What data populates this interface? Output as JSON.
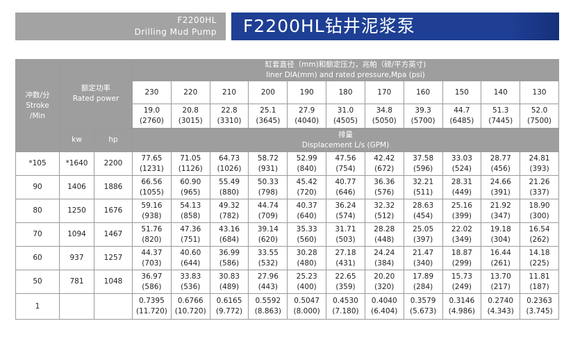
{
  "header": {
    "model": "F2200HL",
    "subtitle": "Drilling Mud Pump",
    "title": "F2200HL钻井泥浆泵"
  },
  "table": {
    "stroke_header": [
      "冲数/分",
      "Stroke",
      "/Min"
    ],
    "power_header": [
      "额定功率",
      "Rated power"
    ],
    "liner_header": [
      "缸套直径（mm)和额定压力，兆帕（磅/平方英寸)",
      "liner DIA(mm) and rated pressure,Mpa (psi)"
    ],
    "diameters": [
      "230",
      "220",
      "210",
      "200",
      "190",
      "180",
      "170",
      "160",
      "150",
      "140",
      "130"
    ],
    "pressures": [
      [
        "19.0",
        "(2760)"
      ],
      [
        "20.8",
        "(3015)"
      ],
      [
        "22.8",
        "(3310)"
      ],
      [
        "25.1",
        "(3645)"
      ],
      [
        "27.9",
        "(4040)"
      ],
      [
        "31.0",
        "(4505)"
      ],
      [
        "34.8",
        "(5050)"
      ],
      [
        "39.3",
        "(5700)"
      ],
      [
        "44.7",
        "(6485)"
      ],
      [
        "51.3",
        "(7445)"
      ],
      [
        "52.0",
        "(7500)"
      ]
    ],
    "kw_header": "kw",
    "hp_header": "hp",
    "displacement_header": [
      "排量",
      "Displacement L/s (GPM)"
    ],
    "rows": [
      {
        "stroke": "*105",
        "kw": "*1640",
        "hp": "2200",
        "flow": [
          [
            "77.65",
            "(1231)"
          ],
          [
            "71.05",
            "(1126)"
          ],
          [
            "64.73",
            "(1026)"
          ],
          [
            "58.72",
            "(931)"
          ],
          [
            "52.99",
            "(840)"
          ],
          [
            "47.56",
            "(754)"
          ],
          [
            "42.42",
            "(672)"
          ],
          [
            "37.58",
            "(596)"
          ],
          [
            "33.03",
            "(524)"
          ],
          [
            "28.77",
            "(456)"
          ],
          [
            "24.81",
            "(393)"
          ]
        ]
      },
      {
        "stroke": "90",
        "kw": "1406",
        "hp": "1886",
        "flow": [
          [
            "66.56",
            "(1055)"
          ],
          [
            "60.90",
            "(965)"
          ],
          [
            "55.49",
            "(880)"
          ],
          [
            "50.33",
            "(798)"
          ],
          [
            "45.42",
            "(720)"
          ],
          [
            "40.77",
            "(646)"
          ],
          [
            "36.36",
            "(576)"
          ],
          [
            "32.21",
            "(511)"
          ],
          [
            "28.31",
            "(449)"
          ],
          [
            "24.66",
            "(391)"
          ],
          [
            "21.26",
            "(337)"
          ]
        ]
      },
      {
        "stroke": "80",
        "kw": "1250",
        "hp": "1676",
        "flow": [
          [
            "59.16",
            "(938)"
          ],
          [
            "54.13",
            "(858)"
          ],
          [
            "49.32",
            "(782)"
          ],
          [
            "44.74",
            "(709)"
          ],
          [
            "40.37",
            "(640)"
          ],
          [
            "36.24",
            "(574)"
          ],
          [
            "32.32",
            "(512)"
          ],
          [
            "28.63",
            "(454)"
          ],
          [
            "25.16",
            "(399)"
          ],
          [
            "21.92",
            "(347)"
          ],
          [
            "18.90",
            "(300)"
          ]
        ]
      },
      {
        "stroke": "70",
        "kw": "1094",
        "hp": "1467",
        "flow": [
          [
            "51.76",
            "(820)"
          ],
          [
            "47.36",
            "(751)"
          ],
          [
            "43.16",
            "(684)"
          ],
          [
            "39.14",
            "(620)"
          ],
          [
            "35.33",
            "(560)"
          ],
          [
            "31.71",
            "(503)"
          ],
          [
            "28.28",
            "(448)"
          ],
          [
            "25.05",
            "(397)"
          ],
          [
            "22.02",
            "(349)"
          ],
          [
            "19.18",
            "(304)"
          ],
          [
            "16.54",
            "(262)"
          ]
        ]
      },
      {
        "stroke": "60",
        "kw": "937",
        "hp": "1257",
        "flow": [
          [
            "44.37",
            "(703)"
          ],
          [
            "40.60",
            "(644)"
          ],
          [
            "36.99",
            "(586)"
          ],
          [
            "33.55",
            "(532)"
          ],
          [
            "30.28",
            "(480)"
          ],
          [
            "27.18",
            "(431)"
          ],
          [
            "24.24",
            "(384)"
          ],
          [
            "21.47",
            "(340)"
          ],
          [
            "18.87",
            "(299)"
          ],
          [
            "16.44",
            "(261)"
          ],
          [
            "14.18",
            "(225)"
          ]
        ]
      },
      {
        "stroke": "50",
        "kw": "781",
        "hp": "1048",
        "flow": [
          [
            "36.97",
            "(586)"
          ],
          [
            "33.83",
            "(536)"
          ],
          [
            "30.83",
            "(489)"
          ],
          [
            "27.96",
            "(443)"
          ],
          [
            "25.23",
            "(400)"
          ],
          [
            "22.65",
            "(359)"
          ],
          [
            "20.20",
            "(320)"
          ],
          [
            "17.89",
            "(284)"
          ],
          [
            "15.73",
            "(249)"
          ],
          [
            "13.70",
            "(217)"
          ],
          [
            "11.81",
            "(187)"
          ]
        ]
      },
      {
        "stroke": "1",
        "flow": [
          [
            "0.7395",
            "(11.720)"
          ],
          [
            "0.6766",
            "(10.720)"
          ],
          [
            "0.6165",
            "(9.772)"
          ],
          [
            "0.5592",
            "(8.863)"
          ],
          [
            "0.5047",
            "(8.000)"
          ],
          [
            "0.4530",
            "(7.180)"
          ],
          [
            "0.4040",
            "(6.404)"
          ],
          [
            "0.3579",
            "(5.673)"
          ],
          [
            "0.3146",
            "(4.986)"
          ],
          [
            "0.2740",
            "(4.343)"
          ],
          [
            "0.2363",
            "(3.745)"
          ]
        ]
      }
    ]
  }
}
